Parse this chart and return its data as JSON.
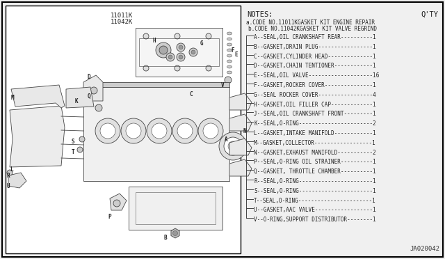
{
  "bg_color": "#f0f0f0",
  "border_color": "#000000",
  "title_codes": [
    "11011K",
    "11042K"
  ],
  "notes_title": "NOTES:",
  "qty_label": "Q'TY",
  "code_a_line": "a.CODE NO.11011KGASKET KIT ENGINE REPAIR",
  "code_b_line": "  b.CODE NO.11042KGASKET KIT VALVE REGRIND",
  "parts": [
    {
      "code": "A",
      "desc": "SEAL,OIL CRANKSHAFT REAR",
      "qty": "1"
    },
    {
      "code": "B",
      "desc": "GASKET,DRAIN PLUG",
      "qty": "1"
    },
    {
      "code": "C",
      "desc": "GASKET,CYLINDER HEAD",
      "qty": "1"
    },
    {
      "code": "D",
      "desc": "GASKET,CHAIN TENTIONER",
      "qty": "1"
    },
    {
      "code": "E",
      "desc": "SEAL,OIL VALVE",
      "qty": "16"
    },
    {
      "code": "F",
      "desc": "GASKET,ROCKER COVER",
      "qty": "1"
    },
    {
      "code": "G",
      "desc": "SEAL ROCKER COVER",
      "qty": "4"
    },
    {
      "code": "H",
      "desc": "GASKET,OIL FILLER CAP",
      "qty": "1"
    },
    {
      "code": "J",
      "desc": "SEAL,OIL CRANKSHAFT FRONT",
      "qty": "1"
    },
    {
      "code": "K",
      "desc": "SEAL,O-RING",
      "qty": "2"
    },
    {
      "code": "L",
      "desc": "GASKET,INTAKE MANIFOLD",
      "qty": "1"
    },
    {
      "code": "M",
      "desc": "GASKET,COLLECTOR",
      "qty": "1"
    },
    {
      "code": "N",
      "desc": "GASKET,EXHAUST MANIFOLD",
      "qty": "2"
    },
    {
      "code": "P",
      "desc": "SEAL,O-RING OIL STRAINER",
      "qty": "1"
    },
    {
      "code": "Q",
      "desc": "GASKET, THROTTLE CHAMBER",
      "qty": "1"
    },
    {
      "code": "R",
      "desc": "SEAL,O-RING",
      "qty": "1"
    },
    {
      "code": "S",
      "desc": "SEAL,O-RING",
      "qty": "1"
    },
    {
      "code": "T",
      "desc": "SEAL,O-RING",
      "qty": "1"
    },
    {
      "code": "U",
      "desc": "GASKET,AAC VALVE",
      "qty": "1"
    },
    {
      "code": "V",
      "desc": "O-RING,SUPPORT DISTRIBUTOR",
      "qty": "1"
    }
  ],
  "diagram_ref": "JA020042",
  "font_color": "#333333",
  "line_color": "#555555",
  "diagram_bg": "#ffffff"
}
